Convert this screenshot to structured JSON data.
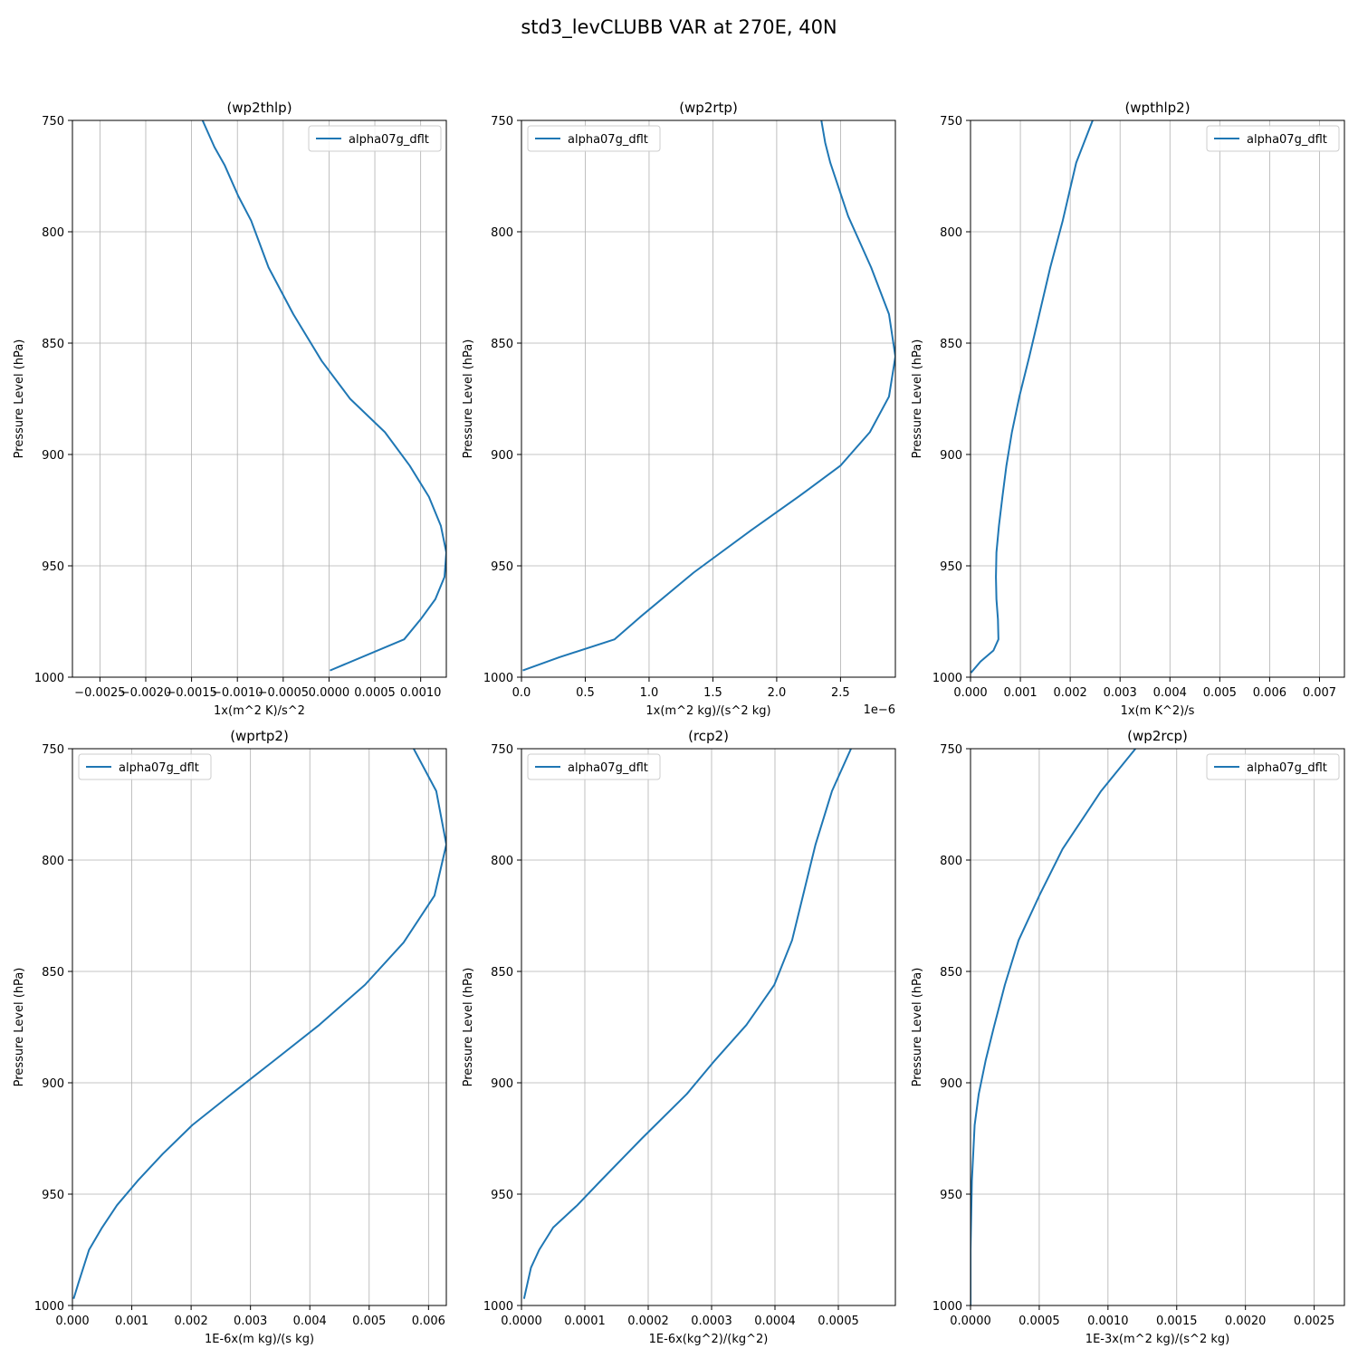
{
  "figure": {
    "title": "std3_levCLUBB VAR at 270E, 40N"
  },
  "chart_data": [
    {
      "type": "line",
      "title": "(wp2thlp)",
      "xlabel": "1x(m^2 K)/s^2",
      "ylabel": "Pressure Level (hPa)",
      "xlim": [
        -0.0028,
        0.00128
      ],
      "ylim": [
        1000,
        750
      ],
      "xticks": [
        -0.0025,
        -0.002,
        -0.0015,
        -0.001,
        -0.0005,
        0.0,
        0.0005,
        0.001
      ],
      "xtick_labels": [
        "−0.0025",
        "−0.0020",
        "−0.0015",
        "−0.0010",
        "−0.0005",
        "0.0000",
        "0.0005",
        "0.0010"
      ],
      "yticks": [
        750,
        800,
        850,
        900,
        950,
        1000
      ],
      "ytick_labels": [
        "750",
        "800",
        "850",
        "900",
        "950",
        "1000"
      ],
      "x_offset_label": "",
      "grid": true,
      "legend": "upper right",
      "series": [
        {
          "name": "alpha07g_dflt",
          "color": "#1f77b4",
          "x": [
            -0.00138,
            -0.00125,
            -0.00114,
            -0.00099,
            -0.00085,
            -0.00066,
            -0.00039,
            -8e-05,
            0.00023,
            0.00061,
            0.00088,
            0.00109,
            0.00122,
            0.00128,
            0.00126,
            0.00116,
            0.001,
            0.00082,
            1e-05
          ],
          "y": [
            750,
            762,
            770,
            784,
            795,
            816,
            837,
            858,
            875,
            890,
            905,
            919,
            932,
            944,
            955,
            965,
            974,
            983,
            997
          ]
        }
      ]
    },
    {
      "type": "line",
      "title": "(wp2rtp)",
      "xlabel": "1x(m^2 kg)/(s^2 kg)",
      "ylabel": "Pressure Level (hPa)",
      "xlim": [
        0.0,
        2.93
      ],
      "ylim": [
        1000,
        750
      ],
      "xticks": [
        0.0,
        0.5,
        1.0,
        1.5,
        2.0,
        2.5
      ],
      "xtick_labels": [
        "0.0",
        "0.5",
        "1.0",
        "1.5",
        "2.0",
        "2.5"
      ],
      "yticks": [
        750,
        800,
        850,
        900,
        950,
        1000
      ],
      "ytick_labels": [
        "750",
        "800",
        "850",
        "900",
        "950",
        "1000"
      ],
      "x_offset_label": "1e−6",
      "grid": true,
      "legend": "upper left",
      "series": [
        {
          "name": "alpha07g_dflt",
          "color": "#1f77b4",
          "x": [
            2.35,
            2.38,
            2.42,
            2.56,
            2.74,
            2.88,
            2.93,
            2.88,
            2.73,
            2.5,
            2.17,
            1.8,
            1.35,
            0.93,
            0.73,
            0.3,
            0.01
          ],
          "y": [
            750,
            760,
            769,
            793,
            816,
            837,
            856,
            874,
            890,
            905,
            919,
            934,
            953,
            973,
            983,
            991,
            997
          ]
        }
      ]
    },
    {
      "type": "line",
      "title": "(wpthlp2)",
      "xlabel": "1x(m K^2)/s",
      "ylabel": "Pressure Level (hPa)",
      "xlim": [
        0.0,
        0.0075
      ],
      "ylim": [
        1000,
        750
      ],
      "xticks": [
        0.0,
        0.001,
        0.002,
        0.003,
        0.004,
        0.005,
        0.006,
        0.007
      ],
      "xtick_labels": [
        "0.000",
        "0.001",
        "0.002",
        "0.003",
        "0.004",
        "0.005",
        "0.006",
        "0.007"
      ],
      "yticks": [
        750,
        800,
        850,
        900,
        950,
        1000
      ],
      "ytick_labels": [
        "750",
        "800",
        "850",
        "900",
        "950",
        "1000"
      ],
      "x_offset_label": "",
      "grid": true,
      "legend": "upper right",
      "series": [
        {
          "name": "alpha07g_dflt",
          "color": "#1f77b4",
          "x": [
            0.00245,
            0.00212,
            0.00185,
            0.0016,
            0.00138,
            0.00118,
            0.00098,
            0.00083,
            0.00072,
            0.00064,
            0.00057,
            0.00052,
            0.00051,
            0.00052,
            0.00055,
            0.00056,
            0.00046,
            0.0002,
            1e-05
          ],
          "y": [
            750,
            769,
            795,
            816,
            837,
            856,
            874,
            890,
            905,
            919,
            932,
            944,
            955,
            965,
            974,
            983,
            988,
            993,
            998
          ]
        }
      ]
    },
    {
      "type": "line",
      "title": "(wprtp2)",
      "xlabel": "1E-6x(m kg)/(s kg)",
      "ylabel": "Pressure Level (hPa)",
      "xlim": [
        0.0,
        0.0063
      ],
      "ylim": [
        1000,
        750
      ],
      "xticks": [
        0.0,
        0.001,
        0.002,
        0.003,
        0.004,
        0.005,
        0.006
      ],
      "xtick_labels": [
        "0.000",
        "0.001",
        "0.002",
        "0.003",
        "0.004",
        "0.005",
        "0.006"
      ],
      "yticks": [
        750,
        800,
        850,
        900,
        950,
        1000
      ],
      "ytick_labels": [
        "750",
        "800",
        "850",
        "900",
        "950",
        "1000"
      ],
      "x_offset_label": "",
      "grid": true,
      "legend": "upper left",
      "series": [
        {
          "name": "alpha07g_dflt",
          "color": "#1f77b4",
          "x": [
            0.00575,
            0.00613,
            0.0063,
            0.0061,
            0.00558,
            0.00493,
            0.00416,
            0.0034,
            0.00268,
            0.00202,
            0.00152,
            0.0011,
            0.00075,
            0.0005,
            0.00028,
            0.0001,
            2e-05
          ],
          "y": [
            750,
            769,
            793,
            816,
            837,
            856,
            874,
            890,
            905,
            919,
            932,
            944,
            955,
            965,
            975,
            990,
            997
          ]
        }
      ]
    },
    {
      "type": "line",
      "title": "(rcp2)",
      "xlabel": "1E-6x(kg^2)/(kg^2)",
      "ylabel": "Pressure Level (hPa)",
      "xlim": [
        0.0,
        0.00059
      ],
      "ylim": [
        1000,
        750
      ],
      "xticks": [
        0.0,
        0.0001,
        0.0002,
        0.0003,
        0.0004,
        0.0005
      ],
      "xtick_labels": [
        "0.0000",
        "0.0001",
        "0.0002",
        "0.0003",
        "0.0004",
        "0.0005"
      ],
      "yticks": [
        750,
        800,
        850,
        900,
        950,
        1000
      ],
      "ytick_labels": [
        "750",
        "800",
        "850",
        "900",
        "950",
        "1000"
      ],
      "x_offset_label": "",
      "grid": true,
      "legend": "upper left",
      "series": [
        {
          "name": "alpha07g_dflt",
          "color": "#1f77b4",
          "x": [
            0.00052,
            0.00049,
            0.000464,
            0.000427,
            0.000399,
            0.000355,
            0.000305,
            0.000261,
            0.00019,
            0.000125,
            8.8e-05,
            5e-05,
            2.8e-05,
            1.5e-05,
            4e-06
          ],
          "y": [
            750,
            769,
            793,
            836,
            856,
            874,
            890,
            905,
            925,
            944,
            955,
            965,
            975,
            983,
            997
          ]
        }
      ]
    },
    {
      "type": "line",
      "title": "(wp2rcp)",
      "xlabel": "1E-3x(m^2 kg)/(s^2 kg)",
      "ylabel": "Pressure Level (hPa)",
      "xlim": [
        0.0,
        0.00272
      ],
      "ylim": [
        1000,
        750
      ],
      "xticks": [
        0.0,
        0.0005,
        0.001,
        0.0015,
        0.002,
        0.0025
      ],
      "xtick_labels": [
        "0.0000",
        "0.0005",
        "0.0010",
        "0.0015",
        "0.0020",
        "0.0025"
      ],
      "yticks": [
        750,
        800,
        850,
        900,
        950,
        1000
      ],
      "ytick_labels": [
        "750",
        "800",
        "850",
        "900",
        "950",
        "1000"
      ],
      "x_offset_label": "",
      "grid": true,
      "legend": "upper right",
      "series": [
        {
          "name": "alpha07g_dflt",
          "color": "#1f77b4",
          "x": [
            0.0012,
            0.00095,
            0.00067,
            0.0005,
            0.00035,
            0.00025,
            0.00017,
            0.00011,
            6e-05,
            3e-05,
            1e-05,
            0.0,
            0.0
          ],
          "y": [
            750,
            769,
            795,
            816,
            836,
            856,
            875,
            890,
            905,
            919,
            944,
            975,
            1000
          ]
        }
      ]
    }
  ]
}
